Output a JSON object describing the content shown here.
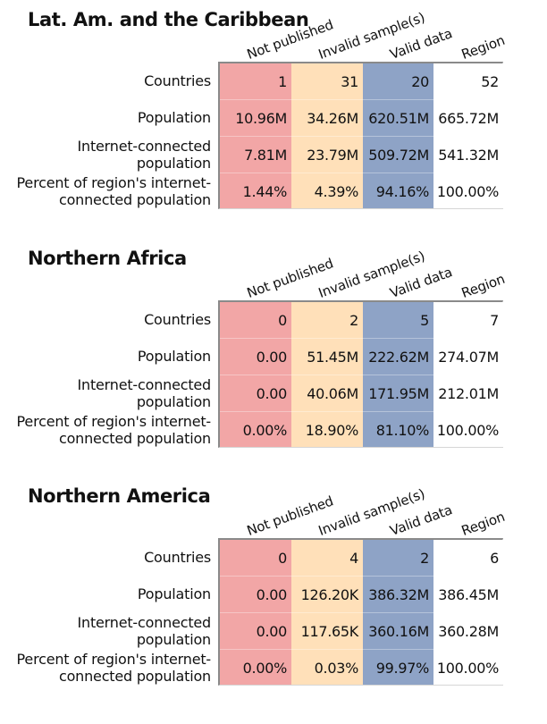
{
  "colors": {
    "not_published": "#F2A6A6",
    "invalid_samples": "#FFE0B9",
    "valid_data": "#8EA3C6",
    "region": "#FFFFFF"
  },
  "columns": [
    "Not published",
    "Invalid sample(s)",
    "Valid data",
    "Region"
  ],
  "row_labels": [
    [
      "Countries"
    ],
    [
      "Population"
    ],
    [
      "Internet-connected",
      "population"
    ],
    [
      "Percent of region's internet-",
      "connected population"
    ]
  ],
  "chart_data": {
    "type": "table",
    "columns": [
      "Not published",
      "Invalid sample(s)",
      "Valid data",
      "Region"
    ],
    "rows": [
      "Countries",
      "Population",
      "Internet-connected population",
      "Percent of region's internet-connected population"
    ],
    "tables": [
      {
        "title": "Lat. Am. and the Caribbean",
        "values": [
          [
            "1",
            "31",
            "20",
            "52"
          ],
          [
            "10.96M",
            "34.26M",
            "620.51M",
            "665.72M"
          ],
          [
            "7.81M",
            "23.79M",
            "509.72M",
            "541.32M"
          ],
          [
            "1.44%",
            "4.39%",
            "94.16%",
            "100.00%"
          ]
        ]
      },
      {
        "title": "Northern Africa",
        "values": [
          [
            "0",
            "2",
            "5",
            "7"
          ],
          [
            "0.00",
            "51.45M",
            "222.62M",
            "274.07M"
          ],
          [
            "0.00",
            "40.06M",
            "171.95M",
            "212.01M"
          ],
          [
            "0.00%",
            "18.90%",
            "81.10%",
            "100.00%"
          ]
        ]
      },
      {
        "title": "Northern America",
        "values": [
          [
            "0",
            "4",
            "2",
            "6"
          ],
          [
            "0.00",
            "126.20K",
            "386.32M",
            "386.45M"
          ],
          [
            "0.00",
            "117.65K",
            "360.16M",
            "360.28M"
          ],
          [
            "0.00%",
            "0.03%",
            "99.97%",
            "100.00%"
          ]
        ]
      }
    ]
  }
}
